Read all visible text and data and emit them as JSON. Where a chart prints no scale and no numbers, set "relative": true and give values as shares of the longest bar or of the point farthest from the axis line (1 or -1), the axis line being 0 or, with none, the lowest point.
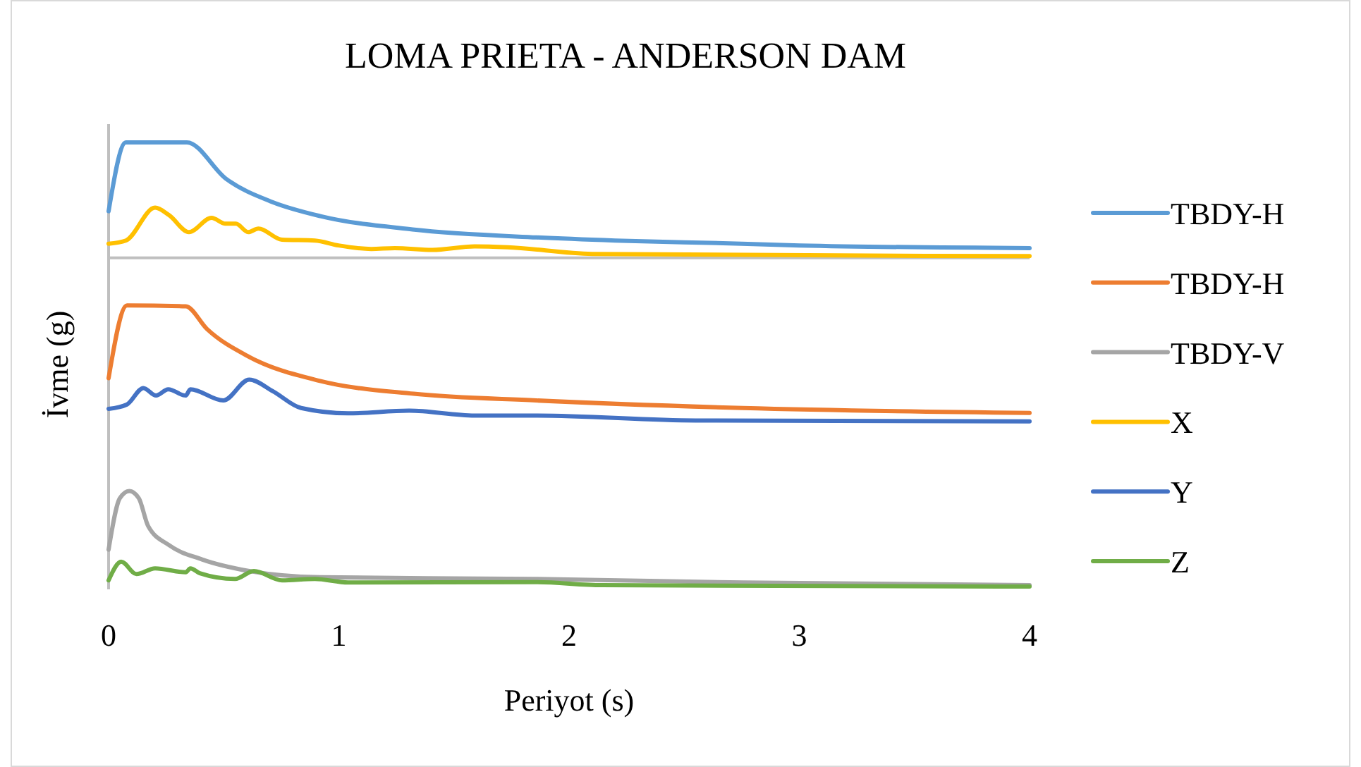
{
  "chart_data": {
    "type": "line",
    "title": "LOMA PRIETA - ANDERSON DAM",
    "xlabel": "Periyot (s)",
    "ylabel": "İvme (g)",
    "relative": true,
    "xlim": [
      0,
      4
    ],
    "xticks": [
      0,
      1,
      2,
      3,
      4
    ],
    "grid": false,
    "legend": "right",
    "line_style": "solid",
    "ref_lines": [
      {
        "axis": "y",
        "value": 0.74,
        "color": "#bfbfbf"
      }
    ],
    "series": [
      {
        "name": "TBDY-H",
        "color": "#5b9bd5",
        "x": [
          0,
          0.075,
          0.34,
          0.51,
          0.71,
          0.92,
          1.32,
          1.86,
          2.2,
          2.75,
          3,
          4
        ],
        "values": [
          0.845,
          1.0,
          1.0,
          0.918,
          0.866,
          0.834,
          0.804,
          0.786,
          0.779,
          0.772,
          0.768,
          0.762
        ]
      },
      {
        "name": "TBDY-H",
        "color": "#ed7d31",
        "x": [
          0,
          0.08,
          0.335,
          0.427,
          0.611,
          0.918,
          1.325,
          1.856,
          2.754,
          4
        ],
        "values": [
          0.469,
          0.633,
          0.631,
          0.58,
          0.517,
          0.463,
          0.434,
          0.419,
          0.402,
          0.391
        ]
      },
      {
        "name": "TBDY-V",
        "color": "#a5a5a5",
        "x": [
          0,
          0.049,
          0.09,
          0.131,
          0.172,
          0.263,
          0.406,
          0.611,
          0.918,
          1.856,
          2.754,
          4
        ],
        "values": [
          0.083,
          0.199,
          0.215,
          0.199,
          0.136,
          0.093,
          0.061,
          0.035,
          0.021,
          0.017,
          0.009,
          0.003
        ]
      },
      {
        "name": "X",
        "color": "#ffc000",
        "x": [
          0,
          0.075,
          0.202,
          0.263,
          0.349,
          0.447,
          0.508,
          0.553,
          0.606,
          0.651,
          0.753,
          0.896,
          0.998,
          1.141,
          1.243,
          1.406,
          1.59,
          1.733,
          2.1,
          4
        ],
        "values": [
          0.772,
          0.779,
          0.853,
          0.836,
          0.798,
          0.83,
          0.817,
          0.817,
          0.798,
          0.806,
          0.781,
          0.779,
          0.768,
          0.76,
          0.762,
          0.758,
          0.766,
          0.764,
          0.749,
          0.744
        ]
      },
      {
        "name": "Y",
        "color": "#4472c4",
        "x": [
          0,
          0.08,
          0.151,
          0.206,
          0.259,
          0.335,
          0.355,
          0.498,
          0.611,
          0.713,
          0.836,
          1.04,
          1.305,
          1.59,
          1.856,
          2.55,
          4
        ],
        "values": [
          0.4,
          0.41,
          0.447,
          0.43,
          0.444,
          0.43,
          0.444,
          0.419,
          0.466,
          0.44,
          0.402,
          0.39,
          0.396,
          0.385,
          0.385,
          0.374,
          0.372
        ]
      },
      {
        "name": "Z",
        "color": "#70ad47",
        "x": [
          0,
          0.055,
          0.121,
          0.202,
          0.335,
          0.355,
          0.396,
          0.549,
          0.631,
          0.753,
          0.896,
          1.04,
          1.856,
          2.142,
          4
        ],
        "values": [
          0.014,
          0.056,
          0.028,
          0.041,
          0.032,
          0.041,
          0.03,
          0.017,
          0.035,
          0.014,
          0.017,
          0.009,
          0.01,
          0.003,
          0
        ]
      }
    ]
  }
}
